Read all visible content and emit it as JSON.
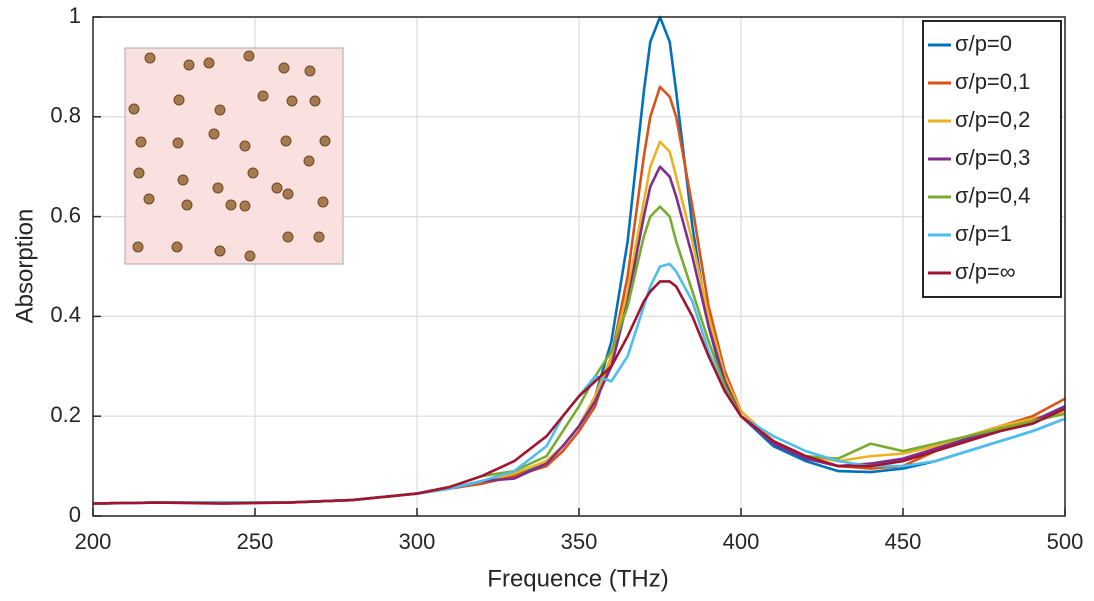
{
  "chart_data": {
    "type": "line",
    "xlabel": "Frequence (THz)",
    "ylabel": "Absorption",
    "x": [
      200,
      220,
      240,
      260,
      280,
      300,
      310,
      320,
      330,
      340,
      345,
      350,
      355,
      360,
      365,
      370,
      372,
      375,
      378,
      380,
      385,
      390,
      395,
      400,
      410,
      420,
      430,
      440,
      450,
      460,
      470,
      480,
      490,
      500
    ],
    "series": [
      {
        "name": "σ/p=0",
        "color": "#0072bd",
        "values": [
          0.025,
          0.027,
          0.027,
          0.027,
          0.032,
          0.045,
          0.055,
          0.065,
          0.08,
          0.11,
          0.14,
          0.18,
          0.24,
          0.35,
          0.55,
          0.85,
          0.95,
          1.0,
          0.95,
          0.85,
          0.58,
          0.38,
          0.26,
          0.2,
          0.14,
          0.11,
          0.09,
          0.088,
          0.095,
          0.11,
          0.13,
          0.15,
          0.17,
          0.195
        ]
      },
      {
        "name": "σ/p=0,1",
        "color": "#d95319",
        "values": [
          0.025,
          0.027,
          0.027,
          0.027,
          0.032,
          0.045,
          0.055,
          0.065,
          0.08,
          0.1,
          0.13,
          0.17,
          0.22,
          0.32,
          0.48,
          0.72,
          0.8,
          0.86,
          0.84,
          0.8,
          0.62,
          0.42,
          0.29,
          0.21,
          0.15,
          0.12,
          0.1,
          0.095,
          0.1,
          0.13,
          0.16,
          0.18,
          0.2,
          0.235
        ]
      },
      {
        "name": "σ/p=0,2",
        "color": "#edb120",
        "values": [
          0.025,
          0.027,
          0.027,
          0.027,
          0.032,
          0.045,
          0.055,
          0.07,
          0.085,
          0.11,
          0.14,
          0.18,
          0.24,
          0.32,
          0.45,
          0.63,
          0.7,
          0.75,
          0.73,
          0.68,
          0.55,
          0.4,
          0.28,
          0.21,
          0.15,
          0.12,
          0.11,
          0.12,
          0.125,
          0.14,
          0.16,
          0.18,
          0.195,
          0.21
        ]
      },
      {
        "name": "σ/p=0,3",
        "color": "#7e2f8e",
        "values": [
          0.025,
          0.027,
          0.027,
          0.027,
          0.032,
          0.045,
          0.055,
          0.07,
          0.075,
          0.105,
          0.14,
          0.18,
          0.23,
          0.3,
          0.43,
          0.6,
          0.66,
          0.7,
          0.68,
          0.64,
          0.52,
          0.38,
          0.27,
          0.2,
          0.145,
          0.115,
          0.1,
          0.105,
          0.115,
          0.135,
          0.155,
          0.175,
          0.19,
          0.22
        ]
      },
      {
        "name": "σ/p=0,4",
        "color": "#77ac30",
        "values": [
          0.025,
          0.027,
          0.027,
          0.027,
          0.032,
          0.045,
          0.058,
          0.08,
          0.09,
          0.12,
          0.17,
          0.22,
          0.28,
          0.33,
          0.42,
          0.56,
          0.6,
          0.62,
          0.6,
          0.55,
          0.45,
          0.35,
          0.26,
          0.2,
          0.15,
          0.12,
          0.115,
          0.145,
          0.13,
          0.145,
          0.16,
          0.175,
          0.19,
          0.205
        ]
      },
      {
        "name": "σ/p=1",
        "color": "#4dbeee",
        "values": [
          0.025,
          0.027,
          0.027,
          0.027,
          0.032,
          0.045,
          0.055,
          0.07,
          0.09,
          0.14,
          0.2,
          0.24,
          0.28,
          0.27,
          0.32,
          0.42,
          0.46,
          0.5,
          0.505,
          0.49,
          0.43,
          0.33,
          0.25,
          0.2,
          0.16,
          0.13,
          0.11,
          0.1,
          0.1,
          0.11,
          0.13,
          0.15,
          0.17,
          0.195
        ]
      },
      {
        "name": "σ/p=∞",
        "color": "#a2142f",
        "values": [
          0.025,
          0.027,
          0.025,
          0.027,
          0.032,
          0.045,
          0.058,
          0.08,
          0.11,
          0.16,
          0.2,
          0.24,
          0.27,
          0.3,
          0.36,
          0.43,
          0.45,
          0.47,
          0.47,
          0.46,
          0.4,
          0.32,
          0.25,
          0.2,
          0.15,
          0.12,
          0.1,
          0.1,
          0.11,
          0.13,
          0.15,
          0.17,
          0.185,
          0.215
        ]
      }
    ],
    "xlim": [
      200,
      500
    ],
    "xticks": [
      200,
      250,
      300,
      350,
      400,
      450,
      500
    ],
    "ylim": [
      0,
      1
    ],
    "yticks": [
      0,
      0.2,
      0.4,
      0.6,
      0.8,
      1
    ],
    "grid": true,
    "legend": "upper right"
  }
}
